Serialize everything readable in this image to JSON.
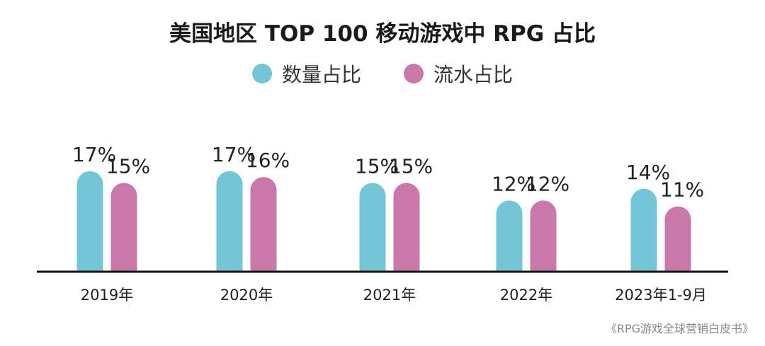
{
  "chart_data": {
    "type": "bar",
    "title": "美国地区 TOP 100 移动游戏中 RPG 占比",
    "categories": [
      "2019年",
      "2020年",
      "2021年",
      "2022年",
      "2023年1-9月"
    ],
    "series": [
      {
        "name": "数量占比",
        "color": "#72c6d5",
        "values": [
          17,
          17,
          15,
          12,
          14
        ],
        "labels": [
          "17%",
          "17%",
          "15%",
          "12%",
          "14%"
        ]
      },
      {
        "name": "流水占比",
        "color": "#c978a9",
        "values": [
          15,
          16,
          15,
          12,
          11
        ],
        "labels": [
          "15%",
          "16%",
          "15%",
          "12%",
          "11%"
        ]
      }
    ],
    "legend_position": "top-center",
    "grid": false,
    "source": "《RPG游戏全球营销白皮书》"
  }
}
